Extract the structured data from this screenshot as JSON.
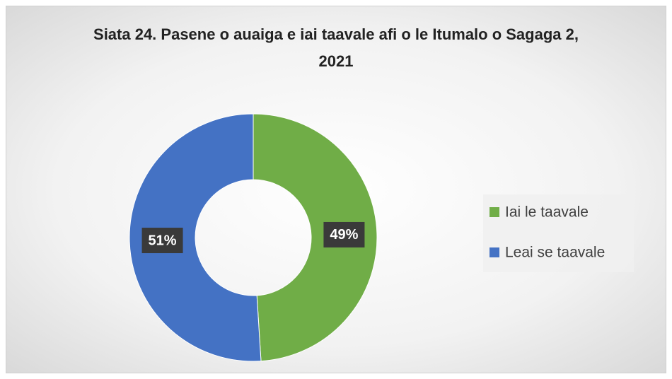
{
  "chart_data": {
    "type": "doughnut",
    "title": "Siata 24. Pasene o auaiga e iai taavale afi o le Itumalo o Sagaga 2, 2021",
    "categories": [
      "Iai le taavale",
      "Leai se taavale"
    ],
    "values": [
      49,
      51
    ],
    "value_labels": [
      "49%",
      "51%"
    ],
    "colors": [
      "#70ad47",
      "#4472c4"
    ],
    "legend": "right"
  }
}
